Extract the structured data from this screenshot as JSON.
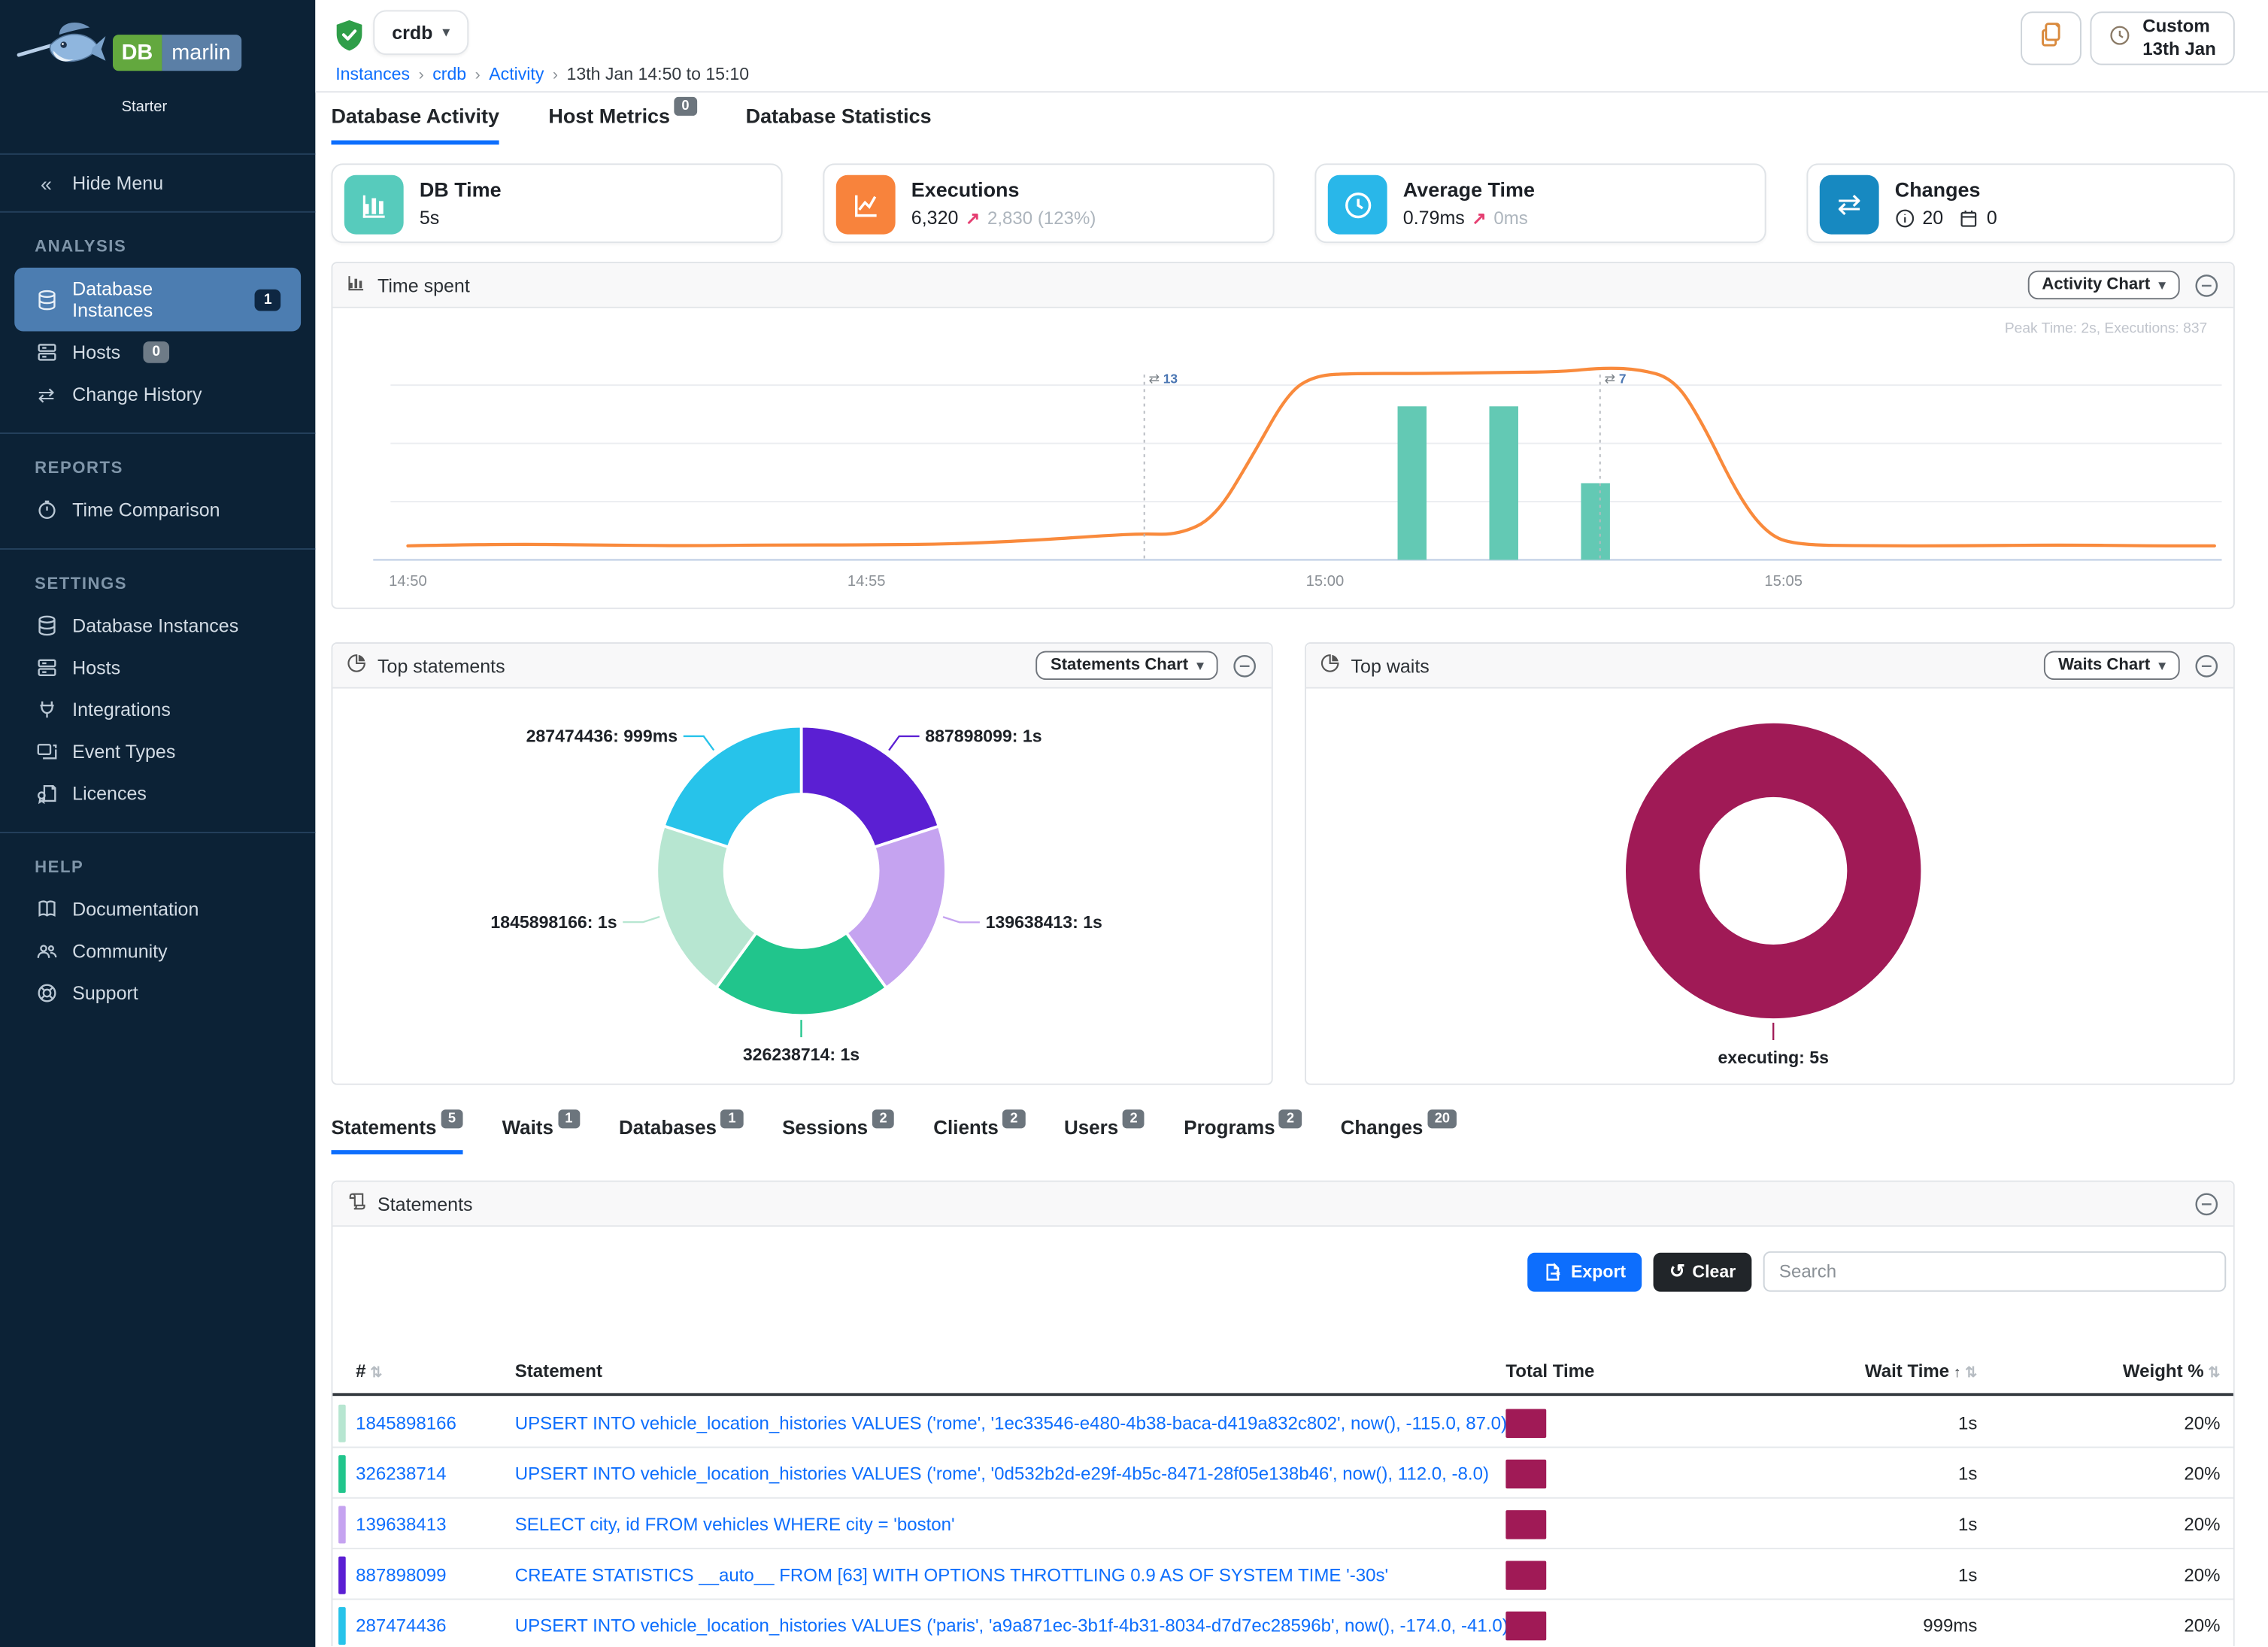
{
  "brand": {
    "name_db": "DB",
    "name_marlin": "marlin",
    "edition": "Starter"
  },
  "sidebar": {
    "hide_menu": "Hide Menu",
    "sections": [
      {
        "title": "ANALYSIS",
        "items": [
          {
            "label": "Database Instances",
            "badge": "1"
          },
          {
            "label": "Hosts",
            "badge": "0"
          },
          {
            "label": "Change History"
          }
        ]
      },
      {
        "title": "REPORTS",
        "items": [
          {
            "label": "Time Comparison"
          }
        ]
      },
      {
        "title": "SETTINGS",
        "items": [
          {
            "label": "Database Instances"
          },
          {
            "label": "Hosts"
          },
          {
            "label": "Integrations"
          },
          {
            "label": "Event Types"
          },
          {
            "label": "Licences"
          }
        ]
      },
      {
        "title": "HELP",
        "items": [
          {
            "label": "Documentation"
          },
          {
            "label": "Community"
          },
          {
            "label": "Support"
          }
        ]
      }
    ]
  },
  "topbar": {
    "instance": "crdb",
    "breadcrumb": {
      "items": [
        "Instances",
        "crdb",
        "Activity"
      ],
      "current": "13th Jan 14:50 to 15:10"
    },
    "time_button": {
      "line1": "Custom",
      "line2": "13th Jan"
    }
  },
  "page_tabs": [
    {
      "label": "Database Activity"
    },
    {
      "label": "Host Metrics",
      "badge": "0"
    },
    {
      "label": "Database Statistics"
    }
  ],
  "cards": {
    "db_time": {
      "title": "DB Time",
      "value": "5s",
      "color": "#57cbbc"
    },
    "executions": {
      "title": "Executions",
      "value": "6,320",
      "arrow": "↗",
      "delta": "2,830 (123%)",
      "color": "#f8833c"
    },
    "average_time": {
      "title": "Average Time",
      "value": "0.79ms",
      "arrow": "↗",
      "delta": "0ms",
      "color": "#29b7e9"
    },
    "changes": {
      "title": "Changes",
      "info_count": "20",
      "calendar_count": "0",
      "color": "#1789c1"
    }
  },
  "panels": {
    "time_spent": {
      "title": "Time spent",
      "menu_button": "Activity Chart"
    },
    "top_statements": {
      "title": "Top statements",
      "menu_button": "Statements Chart"
    },
    "top_waits": {
      "title": "Top waits",
      "menu_button": "Waits Chart"
    },
    "statements": {
      "title": "Statements",
      "export_label": "Export",
      "clear_label": "Clear",
      "search_placeholder": "Search"
    }
  },
  "detail_tabs": [
    {
      "label": "Statements",
      "badge": "5"
    },
    {
      "label": "Waits",
      "badge": "1"
    },
    {
      "label": "Databases",
      "badge": "1"
    },
    {
      "label": "Sessions",
      "badge": "2"
    },
    {
      "label": "Clients",
      "badge": "2"
    },
    {
      "label": "Users",
      "badge": "2"
    },
    {
      "label": "Programs",
      "badge": "2"
    },
    {
      "label": "Changes",
      "badge": "20"
    }
  ],
  "statements_table": {
    "columns": {
      "num": "#",
      "statement": "Statement",
      "total_time": "Total Time",
      "wait_time": "Wait Time",
      "weight": "Weight %"
    },
    "rows": [
      {
        "id": "1845898166",
        "chip_color": "#b7e6d1",
        "statement": "UPSERT INTO vehicle_location_histories VALUES ('rome', '1ec33546-e480-4b38-baca-d419a832c802', now(), -115.0, 87.0)",
        "total_time_bar_color": "#a01a56",
        "wait_time": "1s",
        "weight": "20%"
      },
      {
        "id": "326238714",
        "chip_color": "#21c58c",
        "statement": "UPSERT INTO vehicle_location_histories VALUES ('rome', '0d532b2d-e29f-4b5c-8471-28f05e138b46', now(), 112.0, -8.0)",
        "total_time_bar_color": "#a01a56",
        "wait_time": "1s",
        "weight": "20%"
      },
      {
        "id": "139638413",
        "chip_color": "#c5a3f0",
        "statement": "SELECT city, id FROM vehicles WHERE city = 'boston'",
        "total_time_bar_color": "#a01a56",
        "wait_time": "1s",
        "weight": "20%"
      },
      {
        "id": "887898099",
        "chip_color": "#5b1fd3",
        "statement": "CREATE STATISTICS __auto__ FROM [63] WITH OPTIONS THROTTLING 0.9 AS OF SYSTEM TIME '-30s'",
        "total_time_bar_color": "#a01a56",
        "wait_time": "1s",
        "weight": "20%"
      },
      {
        "id": "287474436",
        "chip_color": "#27c3ea",
        "statement": "UPSERT INTO vehicle_location_histories VALUES ('paris', 'a9a871ec-3b1f-4b31-8034-d7d7ec28596b', now(), -174.0, -41.0)",
        "total_time_bar_color": "#a01a56",
        "wait_time": "999ms",
        "weight": "20%"
      }
    ]
  },
  "chart_data": [
    {
      "id": "time_spent",
      "type": "line",
      "title": "Time spent",
      "corner_note": "Peak Time: 2s, Executions: 837",
      "x_range_minutes": [
        0,
        20
      ],
      "time_window": "14:50 to 15:10",
      "x_ticks": [
        {
          "minute": 0,
          "label": "14:50"
        },
        {
          "minute": 5,
          "label": "14:55"
        },
        {
          "minute": 10,
          "label": "15:00"
        },
        {
          "minute": 15,
          "label": "15:05"
        }
      ],
      "y_axis": {
        "unit": "seconds",
        "max": 2.5,
        "gridlines": [
          0.625,
          1.25,
          1.875
        ]
      },
      "series": [
        {
          "name": "DB Time",
          "kind": "line",
          "color": "#f98a3c",
          "points_minute_seconds": [
            [
              0,
              0.15
            ],
            [
              1,
              0.17
            ],
            [
              2,
              0.16
            ],
            [
              3,
              0.15
            ],
            [
              4,
              0.16
            ],
            [
              5,
              0.16
            ],
            [
              6,
              0.17
            ],
            [
              7,
              0.22
            ],
            [
              7.6,
              0.26
            ],
            [
              8,
              0.28
            ],
            [
              8.4,
              0.27
            ],
            [
              8.8,
              0.45
            ],
            [
              9.2,
              1.1
            ],
            [
              9.6,
              1.8
            ],
            [
              9.9,
              1.98
            ],
            [
              10.3,
              2.0
            ],
            [
              11,
              2.0
            ],
            [
              12,
              2.01
            ],
            [
              12.6,
              2.02
            ],
            [
              13,
              2.06
            ],
            [
              13.4,
              2.05
            ],
            [
              13.8,
              1.95
            ],
            [
              14.1,
              1.5
            ],
            [
              14.5,
              0.7
            ],
            [
              14.8,
              0.3
            ],
            [
              15.1,
              0.16
            ],
            [
              16,
              0.15
            ],
            [
              17,
              0.15
            ],
            [
              18,
              0.16
            ],
            [
              19,
              0.15
            ],
            [
              19.7,
              0.15
            ]
          ]
        },
        {
          "name": "Executions",
          "kind": "bar",
          "color": "#63c9b4",
          "axis_max": 1270,
          "points_minute_value": [
            [
              10.95,
              837
            ],
            [
              11.95,
              837
            ],
            [
              12.95,
              418
            ]
          ]
        }
      ],
      "annotations": [
        {
          "minute": 8.03,
          "icon": "⇄",
          "label": "13"
        },
        {
          "minute": 13.0,
          "icon": "⇄",
          "label": "7"
        }
      ]
    },
    {
      "id": "top_statements",
      "type": "donut",
      "title": "Top statements",
      "slices": [
        {
          "label": "887898099",
          "value_label": "1s",
          "value": 1.0,
          "color": "#5b1fd3"
        },
        {
          "label": "139638413",
          "value_label": "1s",
          "value": 1.0,
          "color": "#c5a3f0"
        },
        {
          "label": "326238714",
          "value_label": "1s",
          "value": 1.0,
          "color": "#21c58c"
        },
        {
          "label": "1845898166",
          "value_label": "1s",
          "value": 1.0,
          "color": "#b7e6d1"
        },
        {
          "label": "287474436",
          "value_label": "999ms",
          "value": 0.999,
          "color": "#27c3ea"
        }
      ]
    },
    {
      "id": "top_waits",
      "type": "donut",
      "title": "Top waits",
      "slices": [
        {
          "label": "executing",
          "value_label": "5s",
          "value": 5.0,
          "color": "#a01a56"
        }
      ]
    }
  ]
}
